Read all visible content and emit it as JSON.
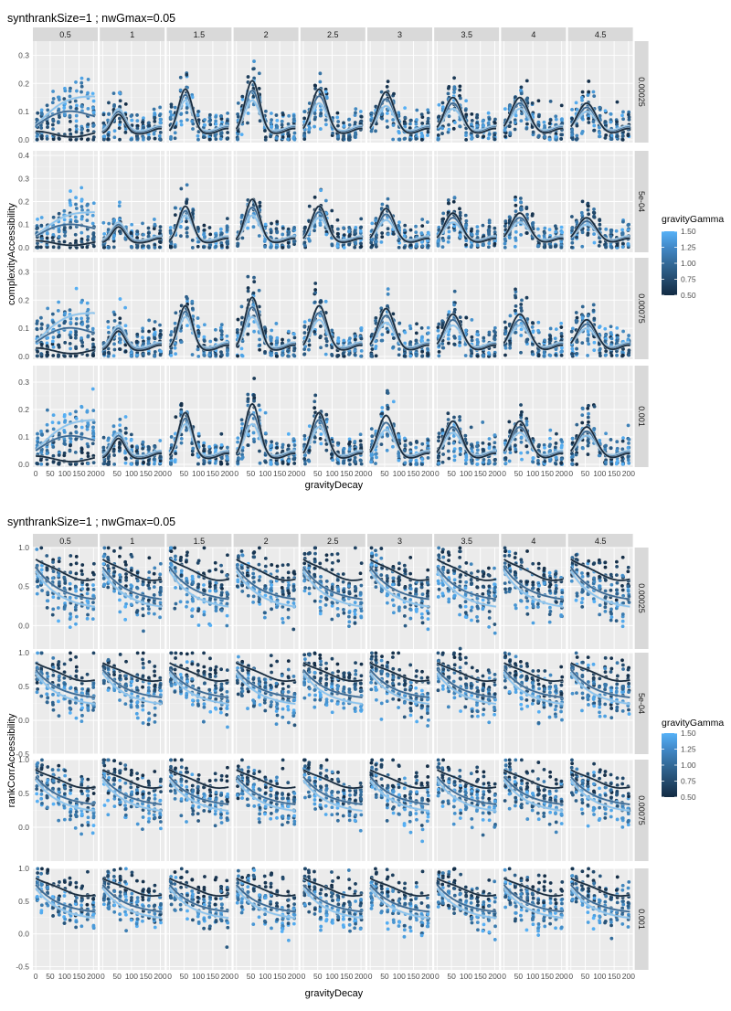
{
  "chart_data": [
    {
      "type": "scatter",
      "title": "synthrankSize=1 ; nwGmax=0.05",
      "xlabel": "gravityDecay",
      "ylabel": "complexityAccessibility",
      "facet_cols": [
        "0.5",
        "1",
        "1.5",
        "2",
        "2.5",
        "3",
        "3.5",
        "4",
        "4.5"
      ],
      "facet_rows": [
        "0.00025",
        "5e-04",
        "0.00075",
        "0.001"
      ],
      "x_ticks": [
        "0",
        "50",
        "100",
        "150",
        "200"
      ],
      "x_tick_values": [
        0,
        50,
        100,
        150,
        200
      ],
      "xlim": [
        -10,
        215
      ],
      "row_ylims": [
        [
          -0.01,
          0.35
        ],
        [
          -0.02,
          0.42
        ],
        [
          -0.01,
          0.35
        ],
        [
          -0.01,
          0.36
        ]
      ],
      "row_yticks": [
        {
          "values": [
            0,
            0.1,
            0.2,
            0.3
          ],
          "labels": [
            "0.0",
            "0.1",
            "0.2",
            "0.3"
          ]
        },
        {
          "values": [
            0,
            0.1,
            0.2,
            0.3,
            0.4
          ],
          "labels": [
            "0.0",
            "0.1",
            "0.2",
            "0.3",
            "0.4"
          ]
        },
        {
          "values": [
            0,
            0.1,
            0.2,
            0.3
          ],
          "labels": [
            "0.0",
            "0.1",
            "0.2",
            "0.3"
          ]
        },
        {
          "values": [
            0,
            0.1,
            0.2,
            0.3
          ],
          "labels": [
            "0.0",
            "0.1",
            "0.2",
            "0.3"
          ]
        }
      ],
      "x_points": [
        5,
        20,
        40,
        60,
        80,
        100,
        120,
        140,
        160,
        180,
        200
      ],
      "color_var": "gravityGamma",
      "gamma_levels": [
        0.5,
        1.0,
        1.5
      ],
      "legend": {
        "title": "gravityGamma",
        "labels": [
          "1.50",
          "1.25",
          "1.00",
          "0.75",
          "0.50"
        ],
        "values": [
          1.5,
          1.25,
          1.0,
          0.75,
          0.5
        ],
        "colors": [
          "#56b1f7",
          "#4289c8",
          "#336a98",
          "#244b6e",
          "#132b43"
        ],
        "placement": "right"
      },
      "grid": true,
      "trend_peak": {
        "row_scale": [
          1.0,
          1.0,
          1.0,
          1.05
        ],
        "col_peak_low_gamma": [
          0.02,
          0.09,
          0.18,
          0.21,
          0.18,
          0.17,
          0.15,
          0.15,
          0.13
        ],
        "col_peak_high_gamma": [
          0.16,
          0.11,
          0.14,
          0.14,
          0.13,
          0.12,
          0.11,
          0.11,
          0.1
        ],
        "peak_x": 55
      }
    },
    {
      "type": "scatter",
      "title": "synthrankSize=1 ; nwGmax=0.05",
      "xlabel": "gravityDecay",
      "ylabel": "rankCorrAccessibility",
      "facet_cols": [
        "0.5",
        "1",
        "1.5",
        "2",
        "2.5",
        "3",
        "3.5",
        "4",
        "4.5"
      ],
      "facet_rows": [
        "0.00025",
        "5e-04",
        "0.00075",
        "0.001"
      ],
      "x_ticks": [
        "0",
        "50",
        "100",
        "150",
        "200"
      ],
      "x_tick_values": [
        0,
        50,
        100,
        150,
        200
      ],
      "xlim": [
        -10,
        215
      ],
      "row_ylims": [
        [
          -0.3,
          1.0
        ],
        [
          -0.5,
          1.0
        ],
        [
          -0.5,
          1.0
        ],
        [
          -0.55,
          1.0
        ]
      ],
      "row_yticks": [
        {
          "values": [
            0,
            0.5,
            1
          ],
          "labels": [
            "0.0",
            "0.5",
            "1.0"
          ]
        },
        {
          "values": [
            -0.5,
            0,
            0.5,
            1
          ],
          "labels": [
            "-0.5",
            "0.0",
            "0.5",
            "1.0"
          ]
        },
        {
          "values": [
            0,
            0.5,
            1
          ],
          "labels": [
            "0.0",
            "0.5",
            "1.0"
          ]
        },
        {
          "values": [
            -0.5,
            0,
            0.5,
            1
          ],
          "labels": [
            "-0.5",
            "0.0",
            "0.5",
            "1.0"
          ]
        }
      ],
      "x_points": [
        5,
        20,
        40,
        60,
        80,
        100,
        120,
        140,
        160,
        180,
        200
      ],
      "color_var": "gravityGamma",
      "gamma_levels": [
        0.5,
        1.0,
        1.5
      ],
      "legend": {
        "title": "gravityGamma",
        "labels": [
          "1.50",
          "1.25",
          "1.00",
          "0.75",
          "0.50"
        ],
        "values": [
          1.5,
          1.25,
          1.0,
          0.75,
          0.5
        ],
        "colors": [
          "#56b1f7",
          "#4289c8",
          "#336a98",
          "#244b6e",
          "#132b43"
        ],
        "placement": "right"
      },
      "grid": true,
      "trend_ends": {
        "low_gamma": [
          0.85,
          0.6
        ],
        "mid_gamma": [
          0.75,
          0.3
        ],
        "high_gamma": [
          0.7,
          0.2
        ]
      }
    }
  ]
}
